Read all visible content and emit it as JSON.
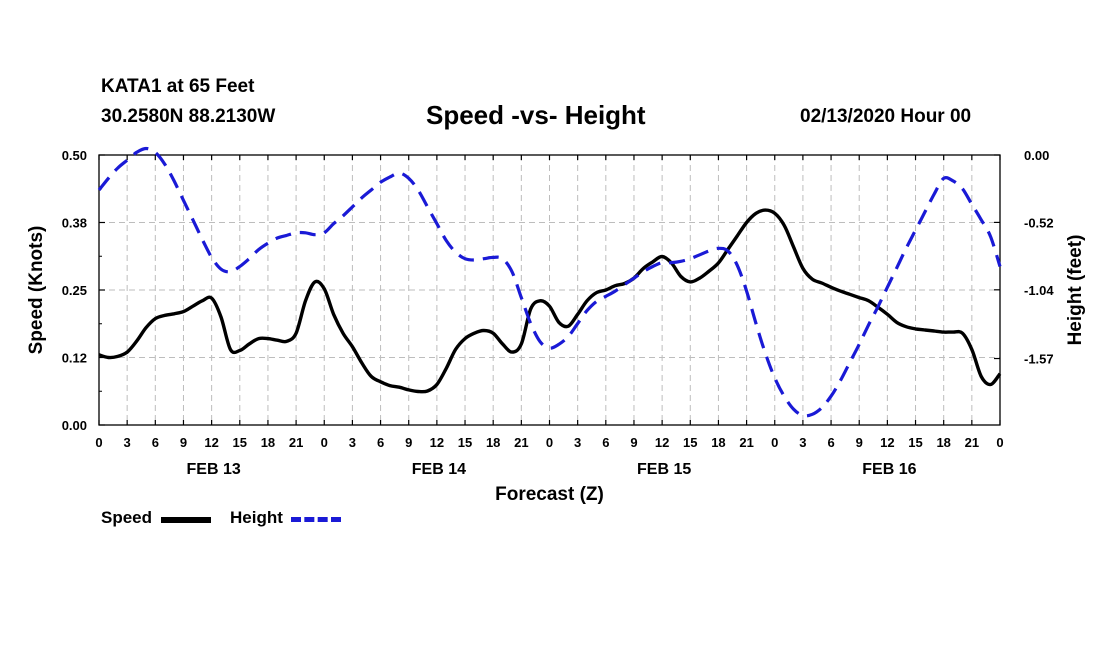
{
  "header": {
    "station": "KATA1 at 65 Feet",
    "coords": "30.2580N 88.2130W",
    "title": "Speed -vs- Height",
    "date": "02/13/2020 Hour 00"
  },
  "legend": {
    "speed_label": "Speed",
    "height_label": "Height"
  },
  "colors": {
    "speed": "#000000",
    "height": "#1a1ad6",
    "grid": "#bdbdbd"
  },
  "chart_data": {
    "type": "line",
    "title": "Speed -vs- Height",
    "xlabel": "Forecast (Z)",
    "ylabel": "Speed (Knots)",
    "ylabel_right": "Height (feet)",
    "x_range": [
      0,
      96
    ],
    "ylim": [
      0,
      0.5
    ],
    "ylim_right": [
      -2.0827,
      0.0
    ],
    "y_ticks": [
      "0.00",
      "0.12",
      "0.25",
      "0.38",
      "0.50"
    ],
    "y_ticks_right": [
      "0.00",
      "-0.52",
      "-1.04",
      "-1.57"
    ],
    "y_ticks_right_values": [
      0.0,
      -0.52,
      -1.04,
      -1.57
    ],
    "x_ticks": [
      "0",
      "3",
      "6",
      "9",
      "12",
      "15",
      "18",
      "21",
      "0",
      "3",
      "6",
      "9",
      "12",
      "15",
      "18",
      "21",
      "0",
      "3",
      "6",
      "9",
      "12",
      "15",
      "18",
      "21",
      "0",
      "3",
      "6",
      "9",
      "12",
      "15",
      "18",
      "21",
      "0"
    ],
    "day_labels": [
      {
        "label": "FEB 13",
        "hour": 12
      },
      {
        "label": "FEB 14",
        "hour": 36
      },
      {
        "label": "FEB 15",
        "hour": 60
      },
      {
        "label": "FEB 16",
        "hour": 84
      }
    ],
    "grid": true,
    "series": [
      {
        "name": "Speed",
        "axis": "left",
        "style": "solid",
        "points": [
          [
            0,
            0.13
          ],
          [
            1,
            0.125
          ],
          [
            2,
            0.127
          ],
          [
            3,
            0.135
          ],
          [
            4,
            0.155
          ],
          [
            5,
            0.18
          ],
          [
            6,
            0.197
          ],
          [
            7,
            0.203
          ],
          [
            8,
            0.206
          ],
          [
            9,
            0.21
          ],
          [
            10,
            0.22
          ],
          [
            11,
            0.23
          ],
          [
            12,
            0.235
          ],
          [
            13,
            0.2
          ],
          [
            14,
            0.14
          ],
          [
            15,
            0.138
          ],
          [
            16,
            0.15
          ],
          [
            17,
            0.16
          ],
          [
            18,
            0.16
          ],
          [
            19,
            0.157
          ],
          [
            20,
            0.155
          ],
          [
            21,
            0.17
          ],
          [
            22,
            0.23
          ],
          [
            23,
            0.265
          ],
          [
            24,
            0.252
          ],
          [
            25,
            0.205
          ],
          [
            26,
            0.17
          ],
          [
            27,
            0.145
          ],
          [
            28,
            0.115
          ],
          [
            29,
            0.09
          ],
          [
            30,
            0.08
          ],
          [
            31,
            0.073
          ],
          [
            32,
            0.07
          ],
          [
            33,
            0.065
          ],
          [
            34,
            0.062
          ],
          [
            35,
            0.063
          ],
          [
            36,
            0.075
          ],
          [
            37,
            0.105
          ],
          [
            38,
            0.14
          ],
          [
            39,
            0.16
          ],
          [
            40,
            0.17
          ],
          [
            41,
            0.175
          ],
          [
            42,
            0.17
          ],
          [
            43,
            0.15
          ],
          [
            44,
            0.135
          ],
          [
            45,
            0.15
          ],
          [
            46,
            0.215
          ],
          [
            47,
            0.23
          ],
          [
            48,
            0.22
          ],
          [
            49,
            0.19
          ],
          [
            50,
            0.183
          ],
          [
            51,
            0.205
          ],
          [
            52,
            0.23
          ],
          [
            53,
            0.245
          ],
          [
            54,
            0.25
          ],
          [
            55,
            0.258
          ],
          [
            56,
            0.262
          ],
          [
            57,
            0.272
          ],
          [
            58,
            0.29
          ],
          [
            59,
            0.302
          ],
          [
            60,
            0.312
          ],
          [
            61,
            0.3
          ],
          [
            62,
            0.275
          ],
          [
            63,
            0.265
          ],
          [
            64,
            0.272
          ],
          [
            65,
            0.285
          ],
          [
            66,
            0.3
          ],
          [
            67,
            0.325
          ],
          [
            68,
            0.35
          ],
          [
            69,
            0.375
          ],
          [
            70,
            0.392
          ],
          [
            71,
            0.398
          ],
          [
            72,
            0.392
          ],
          [
            73,
            0.37
          ],
          [
            74,
            0.33
          ],
          [
            75,
            0.29
          ],
          [
            76,
            0.27
          ],
          [
            77,
            0.263
          ],
          [
            78,
            0.255
          ],
          [
            79,
            0.248
          ],
          [
            80,
            0.242
          ],
          [
            81,
            0.236
          ],
          [
            82,
            0.23
          ],
          [
            83,
            0.218
          ],
          [
            84,
            0.205
          ],
          [
            85,
            0.19
          ],
          [
            86,
            0.182
          ],
          [
            87,
            0.178
          ],
          [
            88,
            0.176
          ],
          [
            89,
            0.174
          ],
          [
            90,
            0.172
          ],
          [
            91,
            0.172
          ],
          [
            92,
            0.17
          ],
          [
            93,
            0.14
          ],
          [
            94,
            0.09
          ],
          [
            95,
            0.075
          ],
          [
            96,
            0.095
          ]
        ]
      },
      {
        "name": "Height",
        "axis": "right",
        "style": "dashed",
        "points": [
          [
            0,
            -0.27
          ],
          [
            1,
            -0.18
          ],
          [
            2,
            -0.1
          ],
          [
            3,
            -0.04
          ],
          [
            4,
            0.02
          ],
          [
            5,
            0.05
          ],
          [
            6,
            0.02
          ],
          [
            7,
            -0.07
          ],
          [
            8,
            -0.2
          ],
          [
            9,
            -0.35
          ],
          [
            10,
            -0.5
          ],
          [
            11,
            -0.65
          ],
          [
            12,
            -0.79
          ],
          [
            13,
            -0.88
          ],
          [
            14,
            -0.9
          ],
          [
            15,
            -0.86
          ],
          [
            16,
            -0.8
          ],
          [
            17,
            -0.73
          ],
          [
            18,
            -0.68
          ],
          [
            19,
            -0.64
          ],
          [
            20,
            -0.62
          ],
          [
            21,
            -0.6
          ],
          [
            22,
            -0.6
          ],
          [
            23,
            -0.615
          ],
          [
            24,
            -0.6
          ],
          [
            25,
            -0.53
          ],
          [
            26,
            -0.47
          ],
          [
            27,
            -0.4
          ],
          [
            28,
            -0.33
          ],
          [
            29,
            -0.27
          ],
          [
            30,
            -0.21
          ],
          [
            31,
            -0.17
          ],
          [
            32,
            -0.14
          ],
          [
            33,
            -0.18
          ],
          [
            34,
            -0.27
          ],
          [
            35,
            -0.4
          ],
          [
            36,
            -0.53
          ],
          [
            37,
            -0.66
          ],
          [
            38,
            -0.75
          ],
          [
            39,
            -0.8
          ],
          [
            40,
            -0.81
          ],
          [
            41,
            -0.8
          ],
          [
            42,
            -0.79
          ],
          [
            43,
            -0.8
          ],
          [
            44,
            -0.9
          ],
          [
            45,
            -1.1
          ],
          [
            46,
            -1.3
          ],
          [
            47,
            -1.44
          ],
          [
            48,
            -1.49
          ],
          [
            49,
            -1.46
          ],
          [
            50,
            -1.4
          ],
          [
            51,
            -1.3
          ],
          [
            52,
            -1.2
          ],
          [
            53,
            -1.13
          ],
          [
            54,
            -1.09
          ],
          [
            55,
            -1.05
          ],
          [
            56,
            -1.0
          ],
          [
            57,
            -0.95
          ],
          [
            58,
            -0.9
          ],
          [
            59,
            -0.86
          ],
          [
            60,
            -0.83
          ],
          [
            61,
            -0.83
          ],
          [
            62,
            -0.82
          ],
          [
            63,
            -0.8
          ],
          [
            64,
            -0.77
          ],
          [
            65,
            -0.74
          ],
          [
            66,
            -0.72
          ],
          [
            67,
            -0.74
          ],
          [
            68,
            -0.85
          ],
          [
            69,
            -1.05
          ],
          [
            70,
            -1.3
          ],
          [
            71,
            -1.53
          ],
          [
            72,
            -1.72
          ],
          [
            73,
            -1.86
          ],
          [
            74,
            -1.96
          ],
          [
            75,
            -2.01
          ],
          [
            76,
            -2.0
          ],
          [
            77,
            -1.95
          ],
          [
            78,
            -1.86
          ],
          [
            79,
            -1.74
          ],
          [
            80,
            -1.6
          ],
          [
            81,
            -1.46
          ],
          [
            82,
            -1.31
          ],
          [
            83,
            -1.17
          ],
          [
            84,
            -1.02
          ],
          [
            85,
            -0.87
          ],
          [
            86,
            -0.72
          ],
          [
            87,
            -0.58
          ],
          [
            88,
            -0.44
          ],
          [
            89,
            -0.3
          ],
          [
            90,
            -0.18
          ],
          [
            91,
            -0.2
          ],
          [
            92,
            -0.26
          ],
          [
            93,
            -0.38
          ],
          [
            94,
            -0.5
          ],
          [
            95,
            -0.63
          ],
          [
            96,
            -0.86
          ]
        ]
      }
    ]
  }
}
